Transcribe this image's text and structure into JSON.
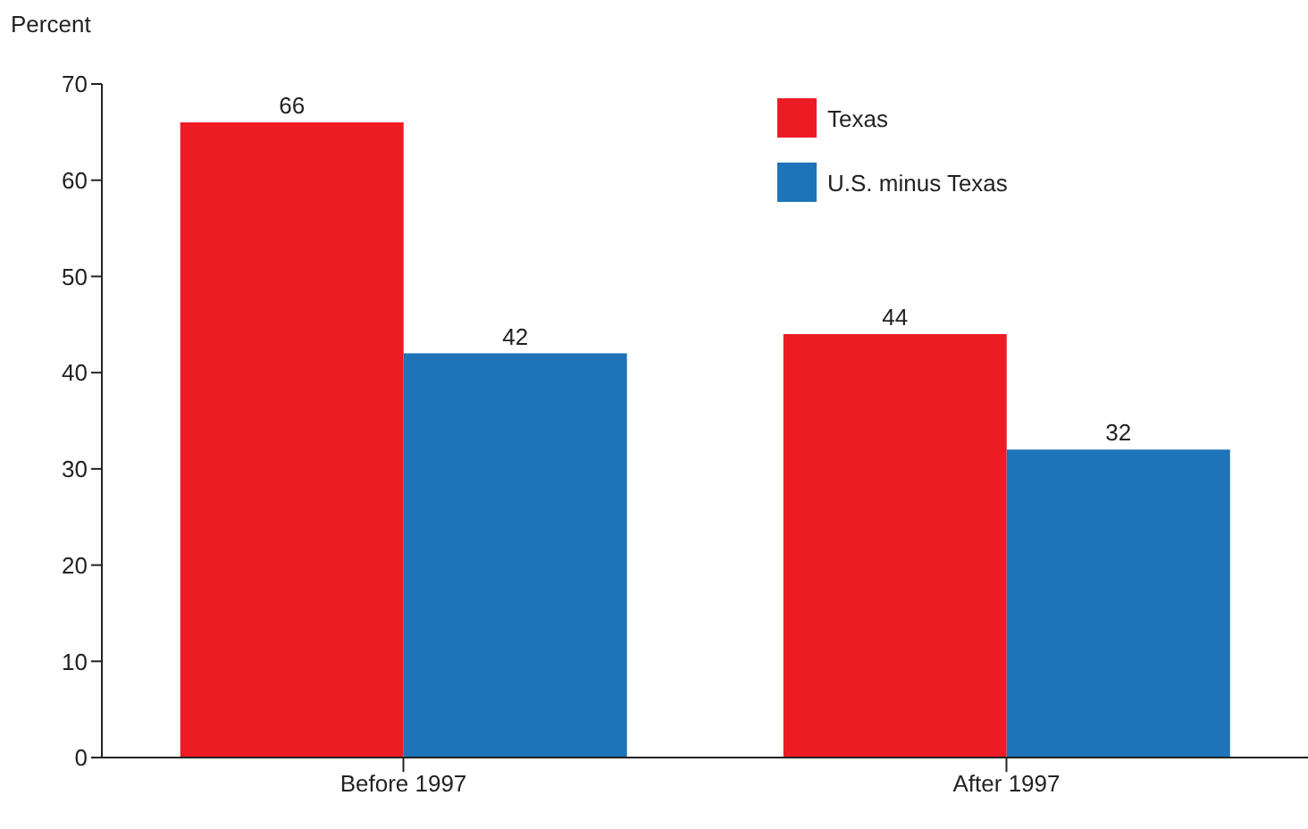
{
  "chart_data": {
    "type": "bar",
    "ylabel": "Percent",
    "categories": [
      "Before 1997",
      "After 1997"
    ],
    "series": [
      {
        "name": "Texas",
        "color": "#ed1c24",
        "values": [
          66,
          44
        ]
      },
      {
        "name": "U.S. minus Texas",
        "color": "#1f73b9",
        "values": [
          42,
          32
        ]
      }
    ],
    "ylim": [
      0,
      70
    ],
    "yticks": [
      0,
      10,
      20,
      30,
      40,
      50,
      60,
      70
    ],
    "data_labels": true,
    "legend": "top right"
  }
}
